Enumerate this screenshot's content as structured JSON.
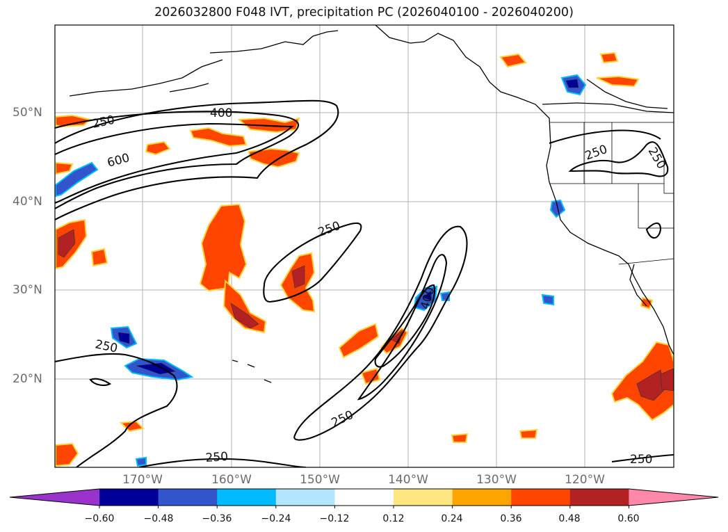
{
  "title": "2026032800 F048 IVT, precipitation PC (2026040100 - 2026040200)",
  "lat_labels": [
    "50°N",
    "40°N",
    "30°N",
    "20°N"
  ],
  "lon_labels": [
    "170°W",
    "160°W",
    "150°W",
    "140°W",
    "130°W",
    "120°W"
  ],
  "contour_labels": [
    "250",
    "400",
    "600",
    "250",
    "250",
    "400",
    "250",
    "250",
    "250",
    "250",
    "250"
  ],
  "colorbar": {
    "ticks": [
      "−0.60",
      "−0.48",
      "−0.36",
      "−0.24",
      "−0.12",
      "0.12",
      "0.24",
      "0.36",
      "0.48",
      "0.60"
    ],
    "colors": [
      "#9933cc",
      "#000099",
      "#3355cc",
      "#00bbff",
      "#b3e5ff",
      "#ffffff",
      "#ffe680",
      "#ffa500",
      "#ff4500",
      "#b22222",
      "#ff88aa"
    ]
  },
  "palette": {
    "strong_positive": "#b22222",
    "positive": "#ff4500",
    "weak_positive": "#ffa500",
    "light_positive": "#ffe680",
    "negative": "#3355cc",
    "strong_negative": "#000099",
    "light_negative": "#00bbff"
  }
}
